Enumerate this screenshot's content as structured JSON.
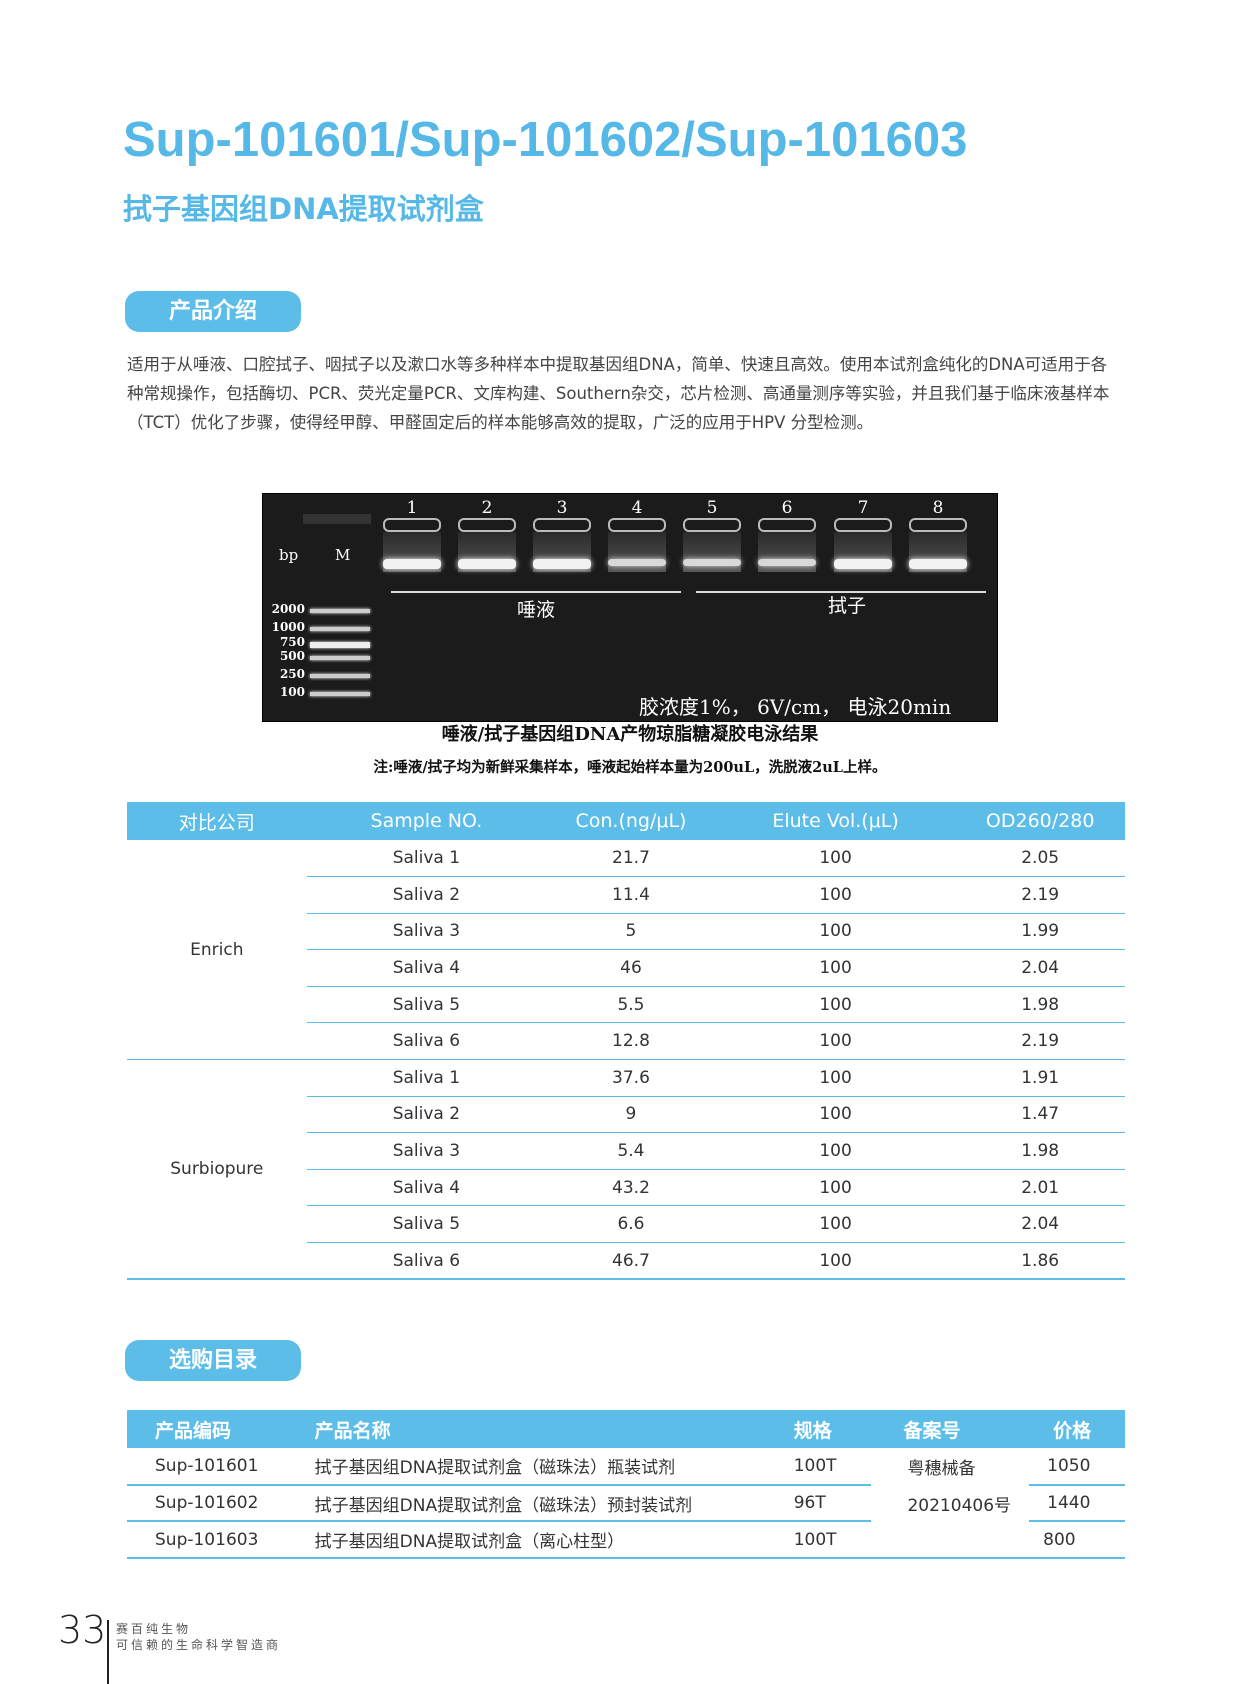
{
  "header": {
    "title": "Sup-101601/Sup-101602/Sup-101603",
    "subtitle": "拭子基因组DNA提取试剂盒"
  },
  "intro": {
    "heading": "产品介绍",
    "text": "适用于从唾液、口腔拭子、咽拭子以及漱口水等多种样本中提取基因组DNA，简单、快速且高效。使用本试剂盒纯化的DNA可适用于各种常规操作，包括酶切、PCR、荧光定量PCR、文库构建、Southern杂交，芯片检测、高通量测序等实验，并且我们基于临床液基样本（TCT）优化了步骤，使得经甲醇、甲醛固定后的样本能够高效的提取，广泛的应用于HPV 分型检测。"
  },
  "gel": {
    "bp_label": "bp",
    "marker_label": "M",
    "lanes": [
      "1",
      "2",
      "3",
      "4",
      "5",
      "6",
      "7",
      "8"
    ],
    "ladder": [
      "2000",
      "1000",
      "750",
      "500",
      "250",
      "100"
    ],
    "group1": "唾液",
    "group2": "拭子",
    "conditions": "胶浓度1%， 6V/cm， 电泳20min",
    "caption": "唾液/拭子基因组DNA产物琼脂糖凝胶电泳结果",
    "note": "注:唾液/拭子均为新鲜采集样本，唾液起始样本量为200uL，洗脱液2uL上样。"
  },
  "comparison": {
    "headers": [
      "对比公司",
      "Sample NO.",
      "Con.(ng/μL)",
      "Elute Vol.(μL)",
      "OD260/280"
    ],
    "groups": [
      {
        "company": "Enrich",
        "rows": [
          [
            "Saliva 1",
            "21.7",
            "100",
            "2.05"
          ],
          [
            "Saliva 2",
            "11.4",
            "100",
            "2.19"
          ],
          [
            "Saliva 3",
            "5",
            "100",
            "1.99"
          ],
          [
            "Saliva 4",
            "46",
            "100",
            "2.04"
          ],
          [
            "Saliva 5",
            "5.5",
            "100",
            "1.98"
          ],
          [
            "Saliva 6",
            "12.8",
            "100",
            "2.19"
          ]
        ]
      },
      {
        "company": "Surbiopure",
        "rows": [
          [
            "Saliva 1",
            "37.6",
            "100",
            "1.91"
          ],
          [
            "Saliva 2",
            "9",
            "100",
            "1.47"
          ],
          [
            "Saliva 3",
            "5.4",
            "100",
            "1.98"
          ],
          [
            "Saliva 4",
            "43.2",
            "100",
            "2.01"
          ],
          [
            "Saliva 5",
            "6.6",
            "100",
            "2.04"
          ],
          [
            "Saliva 6",
            "46.7",
            "100",
            "1.86"
          ]
        ]
      }
    ]
  },
  "catalog": {
    "heading": "选购目录",
    "headers": [
      "产品编码",
      "产品名称",
      "规格",
      "备案号",
      "价格"
    ],
    "rows": [
      [
        "Sup-101601",
        "拭子基因组DNA提取试剂盒（磁珠法）瓶装试剂",
        "100T",
        "1050"
      ],
      [
        "Sup-101602",
        "拭子基因组DNA提取试剂盒（磁珠法）预封装试剂",
        "96T",
        "1440"
      ],
      [
        "Sup-101603",
        "拭子基因组DNA提取试剂盒（离心柱型）",
        "100T",
        "800"
      ]
    ],
    "record_no": [
      "粤穗械备",
      "20210406号"
    ]
  },
  "footer": {
    "page": "33",
    "company": "赛百纯生物",
    "slogan": "可信赖的生命科学智造商"
  },
  "colors": {
    "accent": "#5cbde8",
    "title": "#55b8e6"
  }
}
